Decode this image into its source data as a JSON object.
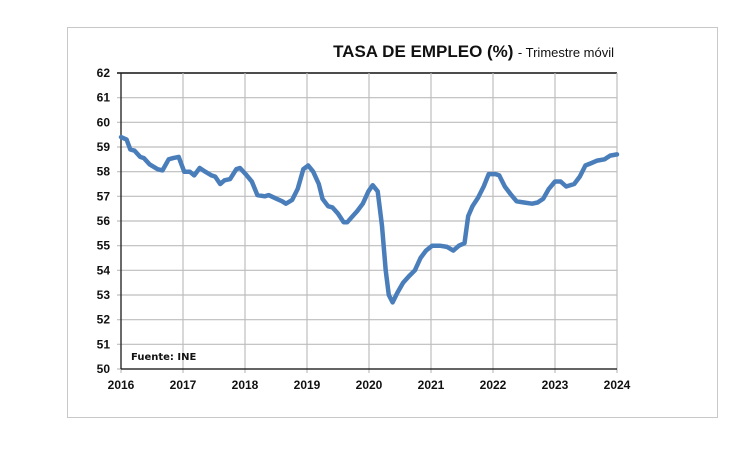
{
  "chart_data": {
    "type": "line",
    "title": "TASA DE EMPLEO (%)",
    "subtitle": "Trimestre móvil",
    "source": "Fuente: INE",
    "xlabel": "",
    "ylabel": "",
    "xlim": [
      2016,
      2024
    ],
    "ylim": [
      50,
      62
    ],
    "x_ticks": [
      "2016",
      "2017",
      "2018",
      "2019",
      "2020",
      "2021",
      "2022",
      "2023",
      "2024"
    ],
    "y_ticks": [
      "50",
      "51",
      "52",
      "53",
      "54",
      "55",
      "56",
      "57",
      "58",
      "59",
      "60",
      "61",
      "62"
    ],
    "grid": true,
    "legend": "none",
    "line_color": "#4a7ebb",
    "series": [
      {
        "x": [
          2016.0,
          2016.09,
          2016.15,
          2016.22,
          2016.31,
          2016.37,
          2016.46,
          2016.59,
          2016.67,
          2016.77,
          2016.84,
          2016.93,
          2016.96,
          2017.02,
          2017.11,
          2017.18,
          2017.27,
          2017.36,
          2017.46,
          2017.52,
          2017.6,
          2017.67,
          2017.76,
          2017.86,
          2017.92,
          2018.01,
          2018.11,
          2018.2,
          2018.32,
          2018.38,
          2018.51,
          2018.6,
          2018.66,
          2018.76,
          2018.85,
          2018.94,
          2019.02,
          2019.1,
          2019.19,
          2019.25,
          2019.34,
          2019.41,
          2019.5,
          2019.59,
          2019.65,
          2019.72,
          2019.81,
          2019.9,
          2019.99,
          2020.06,
          2020.14,
          2020.21,
          2020.27,
          2020.32,
          2020.38,
          2020.46,
          2020.55,
          2020.64,
          2020.74,
          2020.83,
          2020.92,
          2021.02,
          2021.14,
          2021.26,
          2021.36,
          2021.45,
          2021.54,
          2021.6,
          2021.67,
          2021.76,
          2021.85,
          2021.93,
          2022.04,
          2022.1,
          2022.19,
          2022.28,
          2022.38,
          2022.5,
          2022.63,
          2022.72,
          2022.81,
          2022.9,
          2023.0,
          2023.09,
          2023.18,
          2023.31,
          2023.4,
          2023.49,
          2023.59,
          2023.68,
          2023.8,
          2023.89,
          2024.0
        ],
        "y": [
          59.4,
          59.3,
          58.9,
          58.85,
          58.6,
          58.55,
          58.3,
          58.1,
          58.05,
          58.5,
          58.55,
          58.6,
          58.4,
          58.0,
          58.0,
          57.85,
          58.15,
          58.0,
          57.85,
          57.8,
          57.5,
          57.65,
          57.7,
          58.1,
          58.15,
          57.9,
          57.6,
          57.05,
          57.0,
          57.05,
          56.9,
          56.8,
          56.7,
          56.85,
          57.3,
          58.1,
          58.25,
          58.0,
          57.5,
          56.9,
          56.6,
          56.55,
          56.3,
          55.95,
          55.95,
          56.15,
          56.4,
          56.7,
          57.2,
          57.45,
          57.2,
          55.8,
          54.0,
          53.0,
          52.7,
          53.1,
          53.5,
          53.75,
          54.0,
          54.5,
          54.8,
          55.0,
          55.0,
          54.95,
          54.8,
          55.0,
          55.1,
          56.2,
          56.6,
          56.95,
          57.4,
          57.9,
          57.9,
          57.85,
          57.4,
          57.1,
          56.8,
          56.75,
          56.7,
          56.75,
          56.9,
          57.3,
          57.6,
          57.6,
          57.4,
          57.5,
          57.8,
          58.25,
          58.35,
          58.45,
          58.5,
          58.65,
          58.7
        ]
      }
    ]
  }
}
